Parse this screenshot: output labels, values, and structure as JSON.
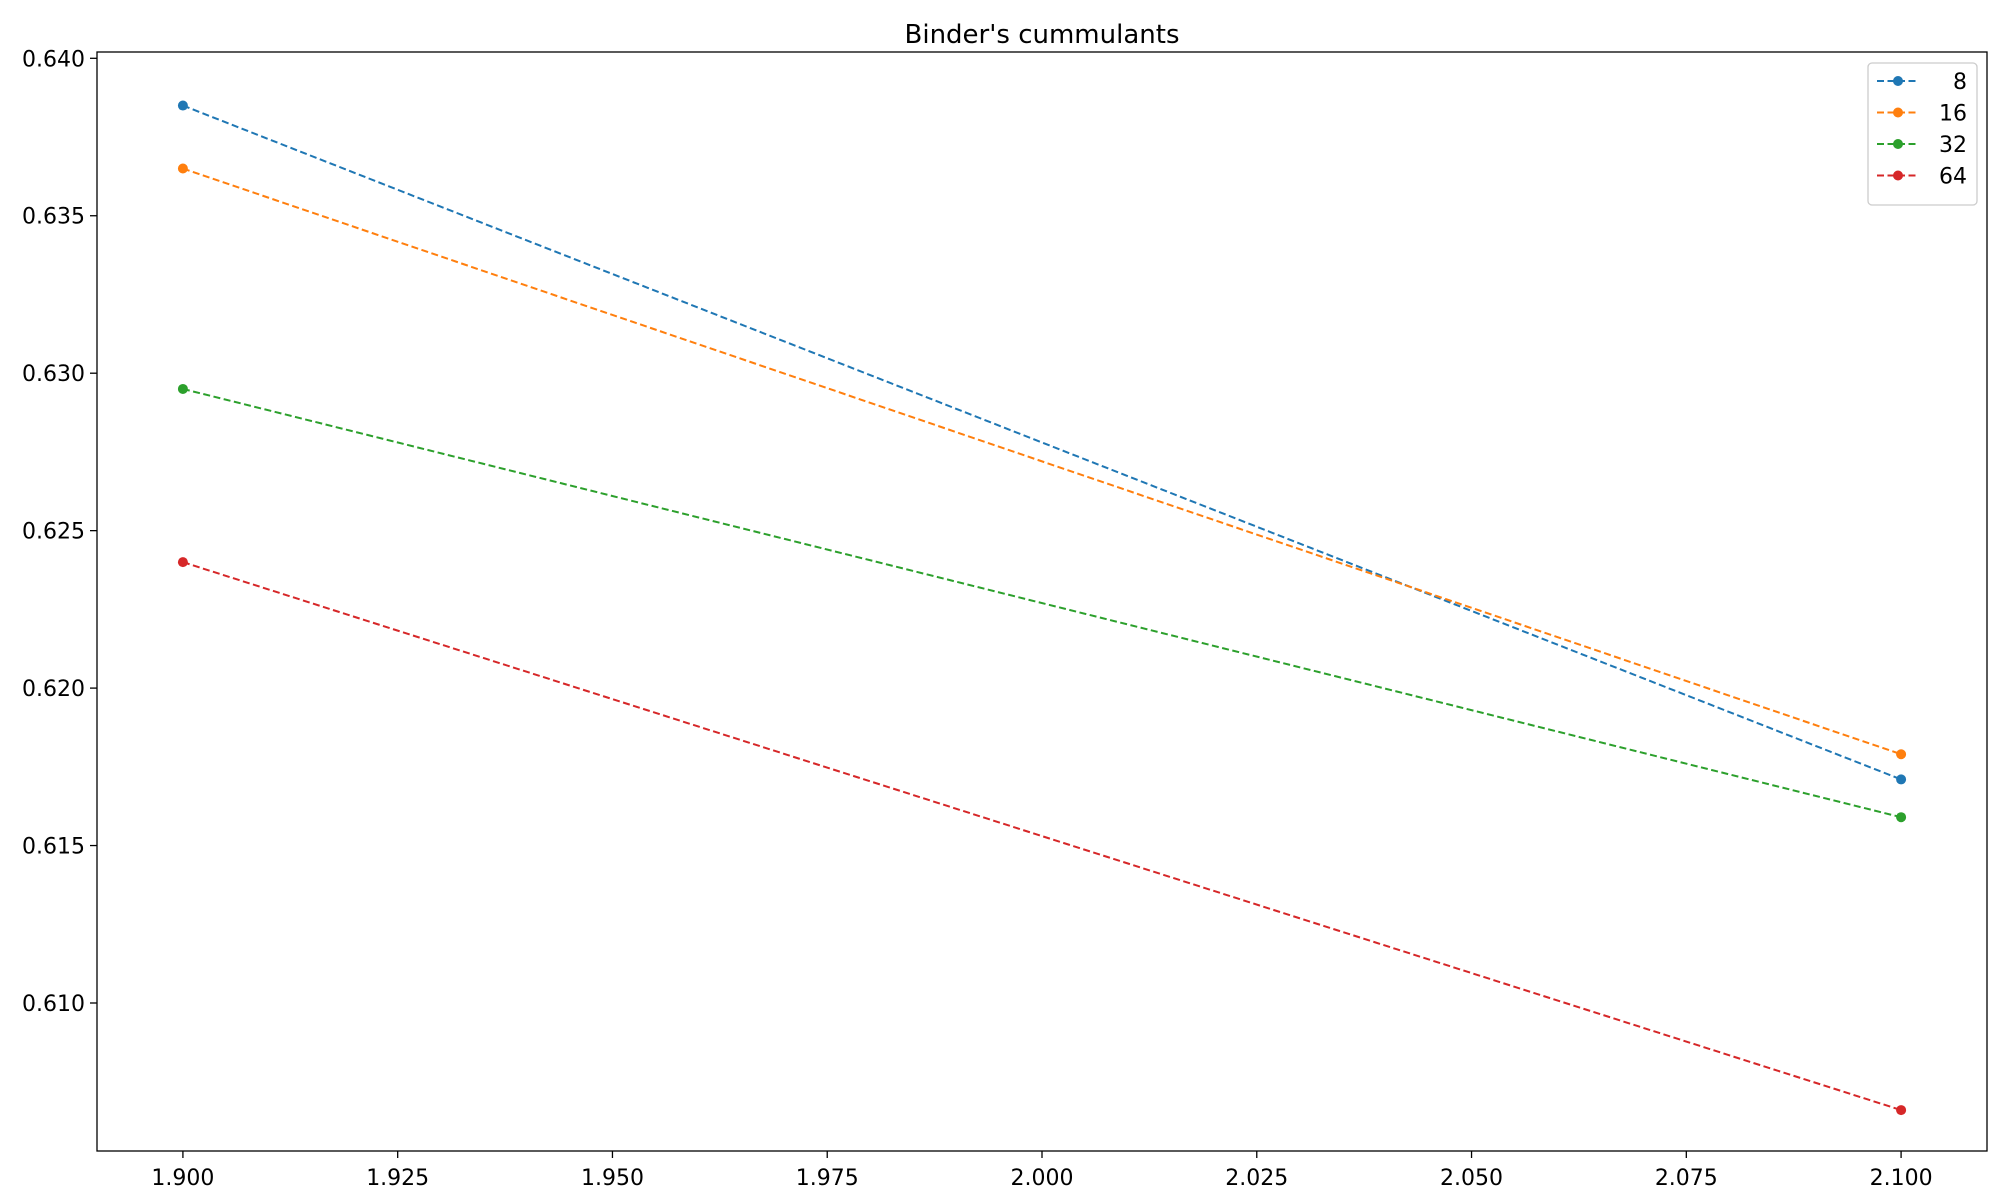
{
  "chart_data": {
    "type": "line",
    "title": "Binder's cummulants",
    "xlabel": "",
    "ylabel": "",
    "x": [
      1.9,
      2.1
    ],
    "xlim": [
      1.89,
      2.11
    ],
    "ylim": [
      0.6053,
      0.6402
    ],
    "xticks": [
      "1.900",
      "1.925",
      "1.950",
      "1.975",
      "2.000",
      "2.025",
      "2.050",
      "2.075",
      "2.100"
    ],
    "yticks": [
      "0.610",
      "0.615",
      "0.620",
      "0.625",
      "0.630",
      "0.635",
      "0.640"
    ],
    "grid": false,
    "legend_position": "top-right",
    "line_style": "dashed",
    "marker": "circle",
    "series": [
      {
        "name": "8",
        "color": "#1f77b4",
        "values": [
          0.6385,
          0.6171
        ]
      },
      {
        "name": "16",
        "color": "#ff7f0e",
        "values": [
          0.6365,
          0.6179
        ]
      },
      {
        "name": "32",
        "color": "#2ca02c",
        "values": [
          0.6295,
          0.6159
        ]
      },
      {
        "name": "64",
        "color": "#d62728",
        "values": [
          0.624,
          0.6066
        ]
      }
    ]
  }
}
